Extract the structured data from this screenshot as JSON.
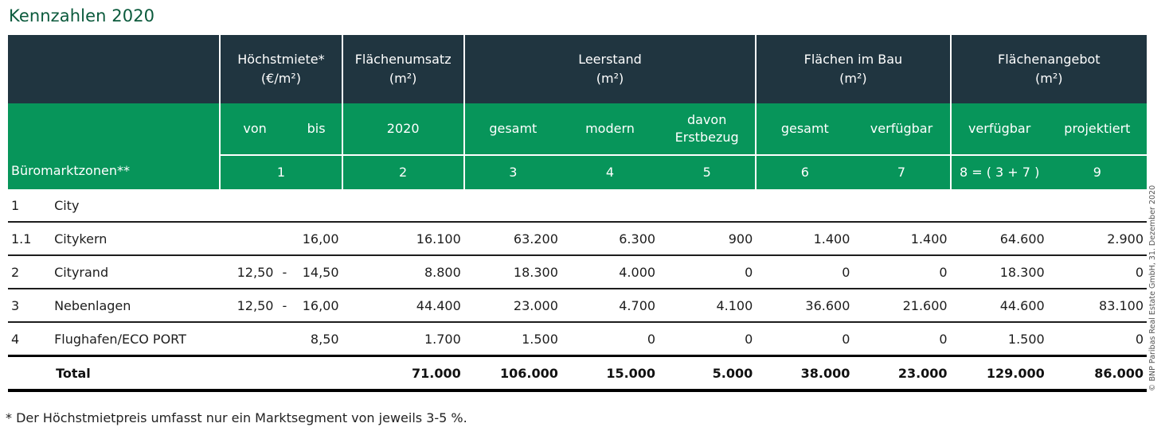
{
  "title": "Kennzahlen 2020",
  "header": {
    "groups": [
      {
        "line1": "Höchstmiete*",
        "line2": "(€/m²)"
      },
      {
        "line1": "Flächenumsatz",
        "line2": "(m²)"
      },
      {
        "line1": "Leerstand",
        "line2": "(m²)"
      },
      {
        "line1": "Flächen im Bau",
        "line2": "(m²)"
      },
      {
        "line1": "Flächenangebot",
        "line2": "(m²)"
      }
    ],
    "sub": {
      "von": "von",
      "bis": "bis",
      "year": "2020",
      "leer_gesamt": "gesamt",
      "leer_modern": "modern",
      "davon_line1": "davon",
      "davon_line2": "Erstbezug",
      "bau_gesamt": "gesamt",
      "bau_verfuegbar": "verfügbar",
      "angebot_verfuegbar": "verfügbar",
      "angebot_projektiert": "projektiert"
    },
    "zone_label": "Büromarktzonen**",
    "numbers": [
      "1",
      "2",
      "3",
      "4",
      "5",
      "6",
      "7",
      "8 = ( 3 + 7 )",
      "9"
    ]
  },
  "rows": [
    {
      "code": "1",
      "zone": "City",
      "von": "",
      "dash": "",
      "bis": "",
      "umsatz": "",
      "leer_gesamt": "",
      "leer_modern": "",
      "erstbezug": "",
      "bau_gesamt": "",
      "bau_verfuegbar": "",
      "angebot_verfuegbar": "",
      "angebot_projektiert": ""
    },
    {
      "code": "1.1",
      "zone": "Citykern",
      "von": "",
      "dash": "",
      "bis": "16,00",
      "umsatz": "16.100",
      "leer_gesamt": "63.200",
      "leer_modern": "6.300",
      "erstbezug": "900",
      "bau_gesamt": "1.400",
      "bau_verfuegbar": "1.400",
      "angebot_verfuegbar": "64.600",
      "angebot_projektiert": "2.900"
    },
    {
      "code": "2",
      "zone": "Cityrand",
      "von": "12,50",
      "dash": "-",
      "bis": "14,50",
      "umsatz": "8.800",
      "leer_gesamt": "18.300",
      "leer_modern": "4.000",
      "erstbezug": "0",
      "bau_gesamt": "0",
      "bau_verfuegbar": "0",
      "angebot_verfuegbar": "18.300",
      "angebot_projektiert": "0"
    },
    {
      "code": "3",
      "zone": "Nebenlagen",
      "von": "12,50",
      "dash": "-",
      "bis": "16,00",
      "umsatz": "44.400",
      "leer_gesamt": "23.000",
      "leer_modern": "4.700",
      "erstbezug": "4.100",
      "bau_gesamt": "36.600",
      "bau_verfuegbar": "21.600",
      "angebot_verfuegbar": "44.600",
      "angebot_projektiert": "83.100"
    },
    {
      "code": "4",
      "zone": "Flughafen/ECO PORT",
      "von": "",
      "dash": "",
      "bis": "8,50",
      "umsatz": "1.700",
      "leer_gesamt": "1.500",
      "leer_modern": "0",
      "erstbezug": "0",
      "bau_gesamt": "0",
      "bau_verfuegbar": "0",
      "angebot_verfuegbar": "1.500",
      "angebot_projektiert": "0"
    }
  ],
  "total": {
    "label": "Total",
    "umsatz": "71.000",
    "leer_gesamt": "106.000",
    "leer_modern": "15.000",
    "erstbezug": "5.000",
    "bau_gesamt": "38.000",
    "bau_verfuegbar": "23.000",
    "angebot_verfuegbar": "129.000",
    "angebot_projektiert": "86.000"
  },
  "footnote": "*   Der Höchstmietpreis umfasst nur ein Marktsegment von jeweils 3-5 %.",
  "copyright": "© BNP Paribas Real Estate GmbH, 31. Dezember 2020"
}
